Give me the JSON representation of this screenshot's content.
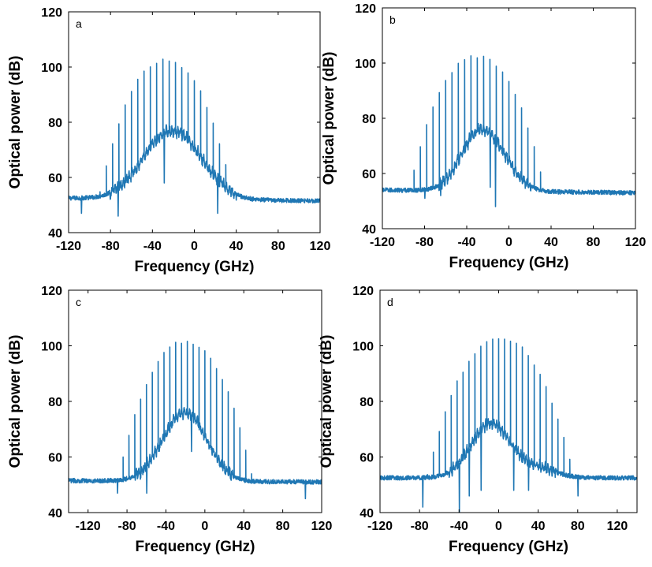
{
  "chart_data": [
    {
      "type": "line",
      "panel_label": "a",
      "xlabel": "Frequency (GHz)",
      "ylabel": "Optical power (dB)",
      "xlim": [
        -120,
        120
      ],
      "ylim": [
        40,
        120
      ],
      "xticks": [
        -120,
        -80,
        -40,
        0,
        40,
        80,
        120
      ],
      "yticks": [
        40,
        60,
        80,
        100,
        120
      ],
      "grid": false,
      "color": "#1f77b4",
      "series": [
        {
          "line_spacing_ghz": 6,
          "comb_center_ghz": -27,
          "comb_peak_db": 103,
          "comb_half_width_ghz": 65,
          "comb_range_ghz": [
            -114,
            90
          ],
          "baseline_db_left": 52.5,
          "baseline_db_right": 51.5,
          "noise_hump_center_ghz": -27,
          "noise_hump_peak_db": 73,
          "noise_hump_width_ghz": 25,
          "secondary_hump_center_ghz": 0,
          "secondary_hump_peak_db": 66,
          "dips": [
            [
              -73,
              46
            ],
            [
              -29,
              58
            ],
            [
              22,
              47
            ],
            [
              -108,
              47
            ]
          ]
        }
      ]
    },
    {
      "type": "line",
      "panel_label": "b",
      "xlabel": "Frequency (GHz)",
      "ylabel": "Optical power (dB)",
      "xlim": [
        -120,
        120
      ],
      "ylim": [
        40,
        120
      ],
      "xticks": [
        -120,
        -80,
        -40,
        0,
        40,
        80,
        120
      ],
      "yticks": [
        40,
        60,
        80,
        100,
        120
      ],
      "grid": false,
      "color": "#1f77b4",
      "series": [
        {
          "line_spacing_ghz": 6,
          "comb_center_ghz": -30,
          "comb_peak_db": 103,
          "comb_half_width_ghz": 65,
          "comb_range_ghz": [
            -108,
            90
          ],
          "baseline_db_left": 54,
          "baseline_db_right": 53,
          "noise_hump_center_ghz": -28,
          "noise_hump_peak_db": 74,
          "noise_hump_width_ghz": 18,
          "secondary_hump_center_ghz": -5,
          "secondary_hump_peak_db": 64,
          "dips": [
            [
              -13,
              48
            ],
            [
              -18,
              55
            ],
            [
              -65,
              52
            ],
            [
              -80,
              51
            ]
          ]
        }
      ]
    },
    {
      "type": "line",
      "panel_label": "c",
      "xlabel": "Frequency (GHz)",
      "ylabel": "Optical power (dB)",
      "xlim": [
        -140,
        120
      ],
      "ylim": [
        40,
        120
      ],
      "xticks": [
        -120,
        -80,
        -40,
        0,
        40,
        80,
        120
      ],
      "yticks": [
        40,
        60,
        80,
        100,
        120
      ],
      "grid": false,
      "color": "#1f77b4",
      "series": [
        {
          "line_spacing_ghz": 6,
          "comb_center_ghz": -20,
          "comb_peak_db": 102,
          "comb_half_width_ghz": 70,
          "comb_range_ghz": [
            -138,
            110
          ],
          "baseline_db_left": 51.5,
          "baseline_db_right": 51,
          "noise_hump_center_ghz": -25,
          "noise_hump_peak_db": 70,
          "noise_hump_width_ghz": 22,
          "secondary_hump_center_ghz": -10,
          "secondary_hump_peak_db": 66,
          "dips": [
            [
              -60,
              47
            ],
            [
              -90,
              47
            ],
            [
              103,
              45
            ],
            [
              -14,
              62
            ]
          ]
        }
      ]
    },
    {
      "type": "line",
      "panel_label": "d",
      "xlabel": "Frequency (GHz)",
      "ylabel": "Optical power (dB)",
      "xlim": [
        -120,
        140
      ],
      "ylim": [
        40,
        120
      ],
      "xticks": [
        -120,
        -80,
        -40,
        0,
        40,
        80,
        120
      ],
      "yticks": [
        40,
        60,
        80,
        100,
        120
      ],
      "grid": false,
      "color": "#1f77b4",
      "series": [
        {
          "line_spacing_ghz": 6,
          "comb_center_ghz": 2,
          "comb_peak_db": 103,
          "comb_half_width_ghz": 75,
          "comb_range_ghz": [
            -108,
            130
          ],
          "baseline_db_left": 52.5,
          "baseline_db_right": 52.5,
          "noise_hump_center_ghz": -8,
          "noise_hump_peak_db": 72,
          "noise_hump_width_ghz": 20,
          "secondary_hump_center_ghz": 40,
          "secondary_hump_peak_db": 59,
          "dips": [
            [
              -77,
              42
            ],
            [
              -40,
              40
            ],
            [
              -30,
              46
            ],
            [
              -18,
              48
            ],
            [
              15,
              48
            ],
            [
              30,
              48
            ],
            [
              80,
              46
            ]
          ]
        }
      ]
    }
  ]
}
